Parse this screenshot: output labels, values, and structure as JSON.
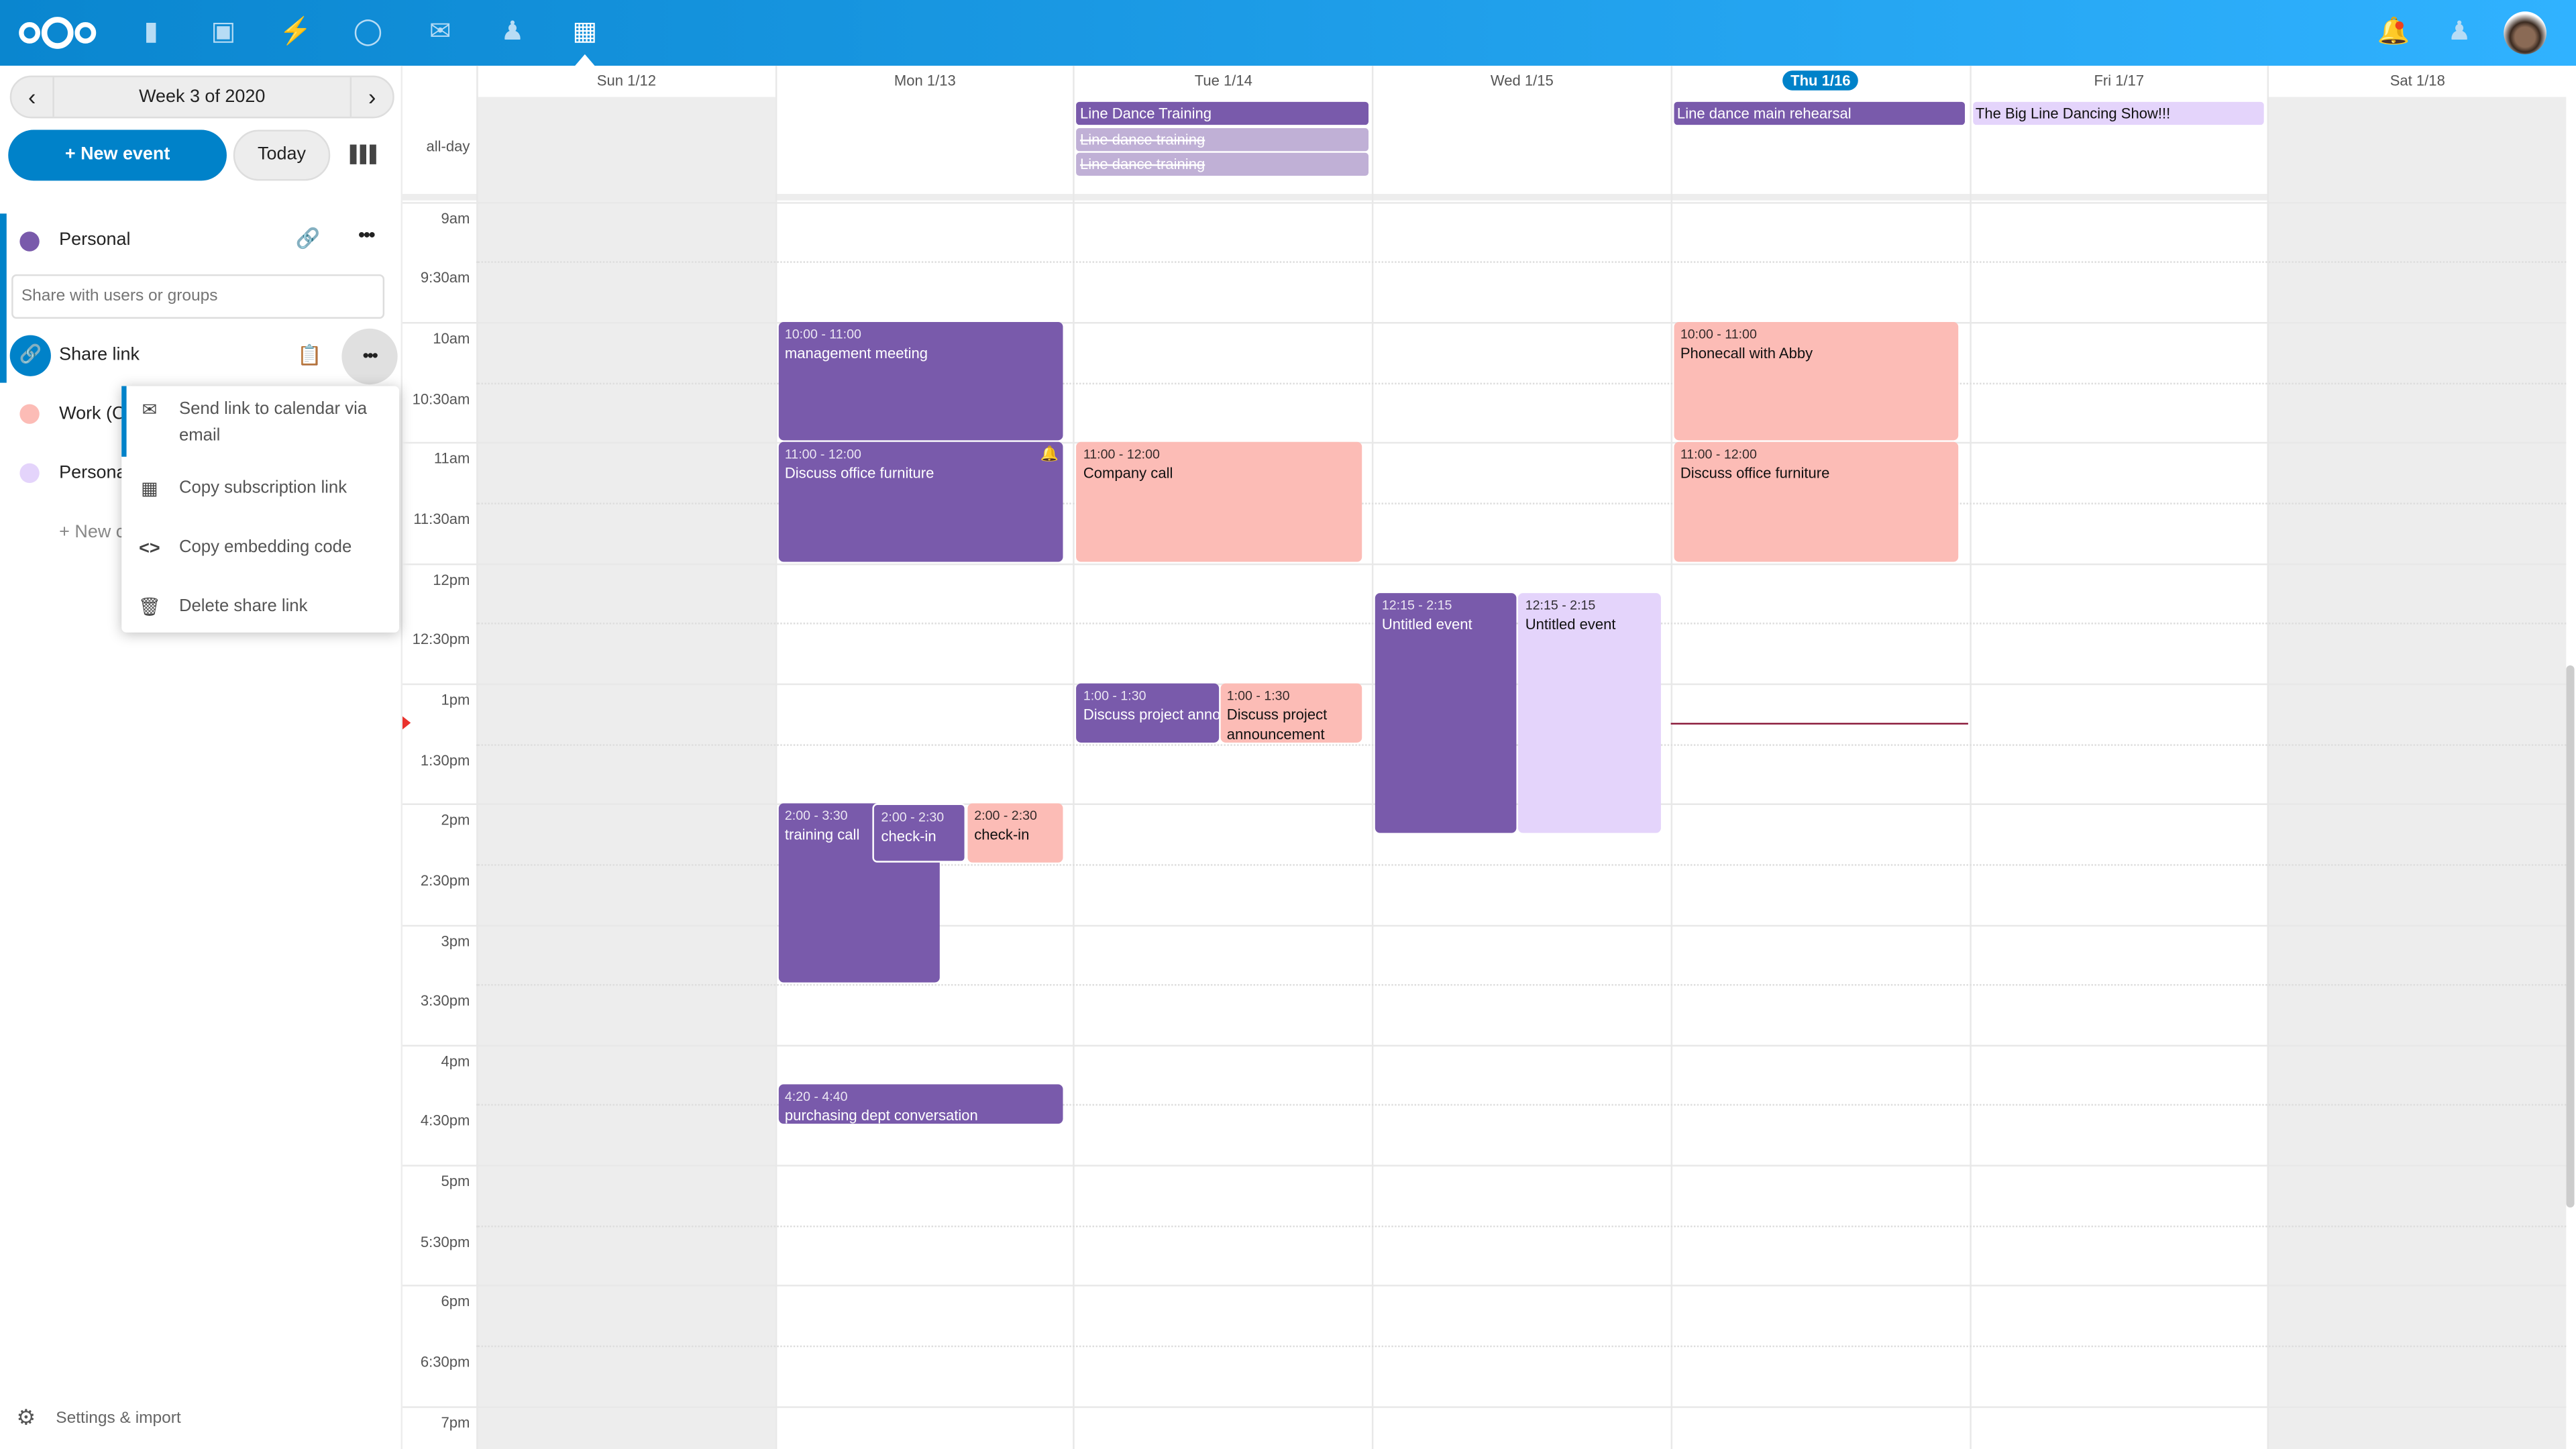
{
  "header": {
    "apps": [
      "files-icon",
      "photos-icon",
      "activity-icon",
      "talk-icon",
      "mail-icon",
      "contacts-icon",
      "calendar-icon"
    ],
    "brand_color": "#0082c9"
  },
  "sidebar": {
    "week_label": "Week 3 of 2020",
    "new_event": "+ New event",
    "today": "Today",
    "calendars": [
      {
        "name": "Personal",
        "color": "#795aab"
      },
      {
        "name": "Work (C",
        "color": "#fcbcb6"
      },
      {
        "name": "Persona",
        "color": "#e4d4fb"
      }
    ],
    "share_placeholder": "Share with users or groups",
    "share_link": "Share link",
    "new_calendar": "+ New c",
    "settings": "Settings & import",
    "menu": [
      "Send link to calendar via email",
      "Copy subscription link",
      "Copy embedding code",
      "Delete share link"
    ]
  },
  "calendar": {
    "days": [
      "Sun 1/12",
      "Mon 1/13",
      "Tue 1/14",
      "Wed 1/15",
      "Thu 1/16",
      "Fri 1/17",
      "Sat 1/18"
    ],
    "today_index": 4,
    "allday_label": "all-day",
    "times": [
      "9am",
      "9:30am",
      "10am",
      "10:30am",
      "11am",
      "11:30am",
      "12pm",
      "12:30pm",
      "1pm",
      "1:30pm",
      "2pm",
      "2:30pm",
      "3pm",
      "3:30pm",
      "4pm",
      "4:30pm",
      "5pm",
      "5:30pm",
      "6pm",
      "6:30pm",
      "7pm"
    ],
    "allday_events": [
      {
        "day": "Tue 1/14",
        "title": "Line Dance Training"
      },
      {
        "day": "Tue 1/14",
        "title": "Line dance training",
        "cancelled": true
      },
      {
        "day": "Tue 1/14",
        "title": "Line dance training",
        "cancelled": true
      },
      {
        "day": "Thu 1/16",
        "title": "Line dance main rehearsal"
      },
      {
        "day": "Fri 1/17",
        "title": "The Big Line Dancing Show!!!"
      }
    ],
    "events": [
      {
        "time": "10:00 - 11:00",
        "title": "management meeting"
      },
      {
        "time": "11:00 - 12:00",
        "title": "Discuss office furniture",
        "alarm": true
      },
      {
        "time": "2:00 - 3:30",
        "title": "training call"
      },
      {
        "time": "2:00 - 2:30",
        "title": "check-in"
      },
      {
        "time": "2:00 - 2:30",
        "title": "check-in"
      },
      {
        "time": "4:20 - 4:40",
        "title": "purchasing dept conversation"
      },
      {
        "time": "11:00 - 12:00",
        "title": "Company call"
      },
      {
        "time": "1:00 - 1:30",
        "title": "Discuss project announcement"
      },
      {
        "time": "1:00 - 1:30",
        "title": "Discuss project announcement"
      },
      {
        "time": "12:15 - 2:15",
        "title": "Untitled event"
      },
      {
        "time": "12:15 - 2:15",
        "title": "Untitled event"
      },
      {
        "time": "10:00 - 11:00",
        "title": "Phonecall with Abby"
      },
      {
        "time": "11:00 - 12:00",
        "title": "Discuss office furniture"
      }
    ]
  }
}
